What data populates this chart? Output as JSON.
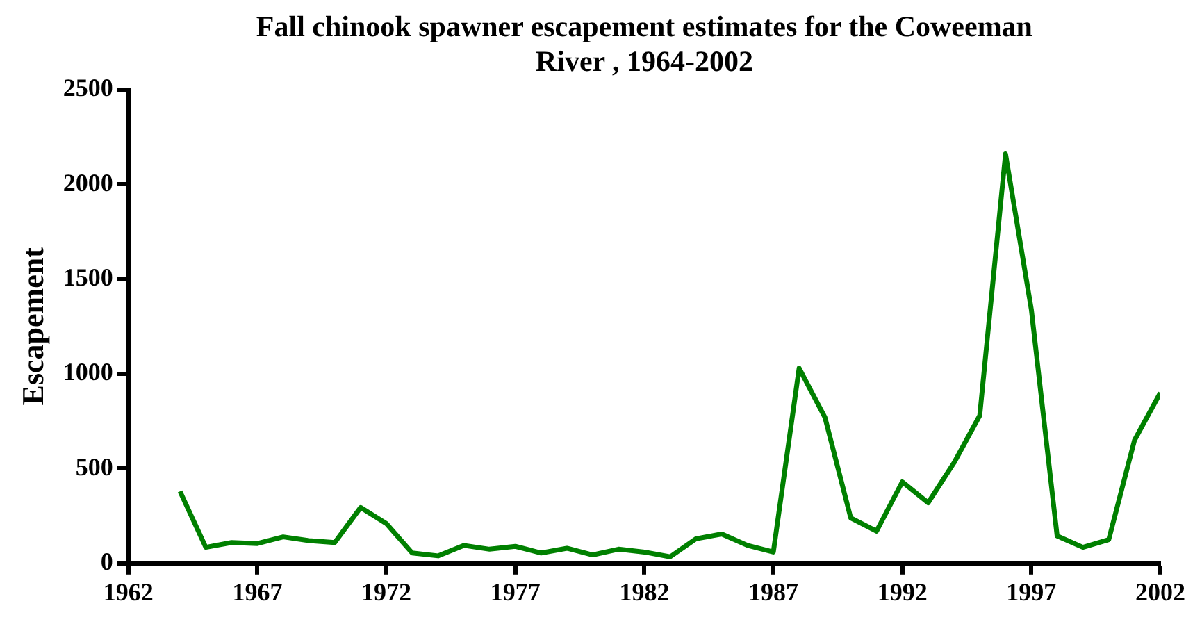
{
  "chart_data": {
    "type": "line",
    "title": "Fall chinook spawner escapement estimates for the Coweeman River , 1964-2002",
    "ylabel": "Escapement",
    "x": [
      1964,
      1965,
      1966,
      1967,
      1968,
      1969,
      1970,
      1971,
      1972,
      1973,
      1974,
      1975,
      1976,
      1977,
      1978,
      1979,
      1980,
      1981,
      1982,
      1983,
      1984,
      1985,
      1986,
      1987,
      1988,
      1989,
      1990,
      1991,
      1992,
      1993,
      1994,
      1995,
      1996,
      1997,
      1998,
      1999,
      2000,
      2001,
      2002
    ],
    "series": [
      {
        "color": "#008000",
        "values": [
          380,
          85,
          110,
          105,
          140,
          120,
          110,
          295,
          210,
          55,
          40,
          95,
          75,
          90,
          55,
          80,
          45,
          75,
          60,
          35,
          130,
          155,
          95,
          60,
          1030,
          770,
          240,
          170,
          430,
          320,
          530,
          780,
          2160,
          1340,
          145,
          85,
          125,
          650,
          900
        ]
      }
    ],
    "xlim": [
      1962,
      2002
    ],
    "xticks": [
      1962,
      1967,
      1972,
      1977,
      1982,
      1987,
      1992,
      1997,
      2002
    ],
    "ylim": [
      0,
      2500
    ],
    "yticks": [
      0,
      500,
      1000,
      1500,
      2000,
      2500
    ],
    "grid": false,
    "legend": false,
    "marker": "none",
    "line_style": "solid"
  }
}
